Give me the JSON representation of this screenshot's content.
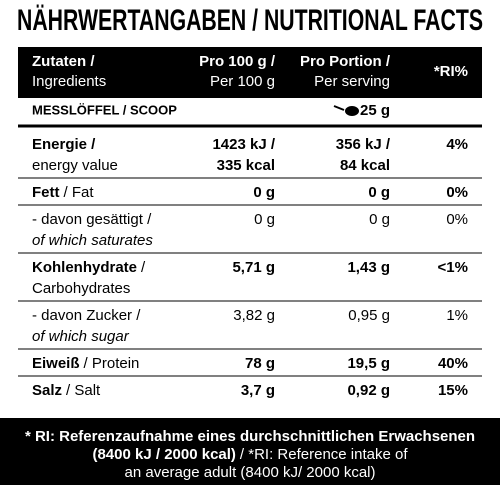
{
  "title": "NÄHRWERTANGABEN / NUTRITIONAL FACTS",
  "header": [
    [
      [
        {
          "text": "Zutaten /",
          "style": "bold"
        }
      ],
      [
        {
          "text": "Ingredients",
          "style": "normal"
        }
      ]
    ],
    [
      [
        {
          "text": "Pro 100 g /",
          "style": "bold"
        }
      ],
      [
        {
          "text": "Per 100 g",
          "style": "normal"
        }
      ]
    ],
    [
      [
        {
          "text": "Pro Portion /",
          "style": "bold"
        }
      ],
      [
        {
          "text": "Per serving",
          "style": "normal"
        }
      ]
    ],
    [
      [
        {
          "text": "*RI%",
          "style": "bold"
        }
      ]
    ]
  ],
  "scoop": {
    "label": "MESSLÖFFEL / SCOOP",
    "amount": "25 g"
  },
  "rows": [
    {
      "name": [
        [
          {
            "text": "Energie /",
            "style": "bold"
          }
        ],
        [
          {
            "text": "energy value",
            "style": "normal"
          }
        ]
      ],
      "per100": [
        "1423 kJ /",
        "335 kcal"
      ],
      "portion": [
        "356 kJ /",
        "84 kcal"
      ],
      "ri": "4%",
      "bold": true
    },
    {
      "name": [
        [
          {
            "text": "Fett",
            "style": "bold"
          },
          {
            "text": "/ Fat",
            "style": "normal"
          }
        ]
      ],
      "per100": [
        "0 g"
      ],
      "portion": [
        "0 g"
      ],
      "ri": "0%",
      "bold": true
    },
    {
      "name": [
        [
          {
            "text": "- davon gesättigt /",
            "style": "normal"
          }
        ],
        [
          {
            "text": "of which saturates",
            "style": "italic"
          }
        ]
      ],
      "per100": [
        "0 g"
      ],
      "portion": [
        "0 g"
      ],
      "ri": "0%",
      "bold": false
    },
    {
      "name": [
        [
          {
            "text": "Kohlenhydrate",
            "style": "bold"
          },
          {
            "text": "/",
            "style": "normal"
          }
        ],
        [
          {
            "text": "Carbohydrates",
            "style": "normal"
          }
        ]
      ],
      "per100": [
        "5,71 g"
      ],
      "portion": [
        "1,43 g"
      ],
      "ri": "<1%",
      "bold": true
    },
    {
      "name": [
        [
          {
            "text": "- davon Zucker /",
            "style": "normal"
          }
        ],
        [
          {
            "text": "of which sugar",
            "style": "italic"
          }
        ]
      ],
      "per100": [
        "3,82 g"
      ],
      "portion": [
        "0,95 g"
      ],
      "ri": "1%",
      "bold": false
    },
    {
      "name": [
        [
          {
            "text": "Eiweiß",
            "style": "bold"
          },
          {
            "text": "/ Protein",
            "style": "normal"
          }
        ]
      ],
      "per100": [
        "78 g"
      ],
      "portion": [
        "19,5 g"
      ],
      "ri": "40%",
      "bold": true
    },
    {
      "name": [
        [
          {
            "text": "Salz",
            "style": "bold"
          },
          {
            "text": "/ Salt",
            "style": "normal"
          }
        ]
      ],
      "per100": [
        "3,7 g"
      ],
      "portion": [
        "0,92 g"
      ],
      "ri": "15%",
      "bold": true
    }
  ],
  "footnote": [
    [
      {
        "text": "* RI: Referenzaufnahme eines durchschnittlichen Erwachsenen",
        "style": "bold"
      }
    ],
    [
      {
        "text": "(8400 kJ / 2000 kcal)",
        "style": "bold"
      },
      {
        "text": "/ *RI: Reference intake of",
        "style": "normal"
      }
    ],
    [
      {
        "text": "an average adult (8400 kJ/ 2000 kcal)",
        "style": "normal"
      }
    ]
  ]
}
